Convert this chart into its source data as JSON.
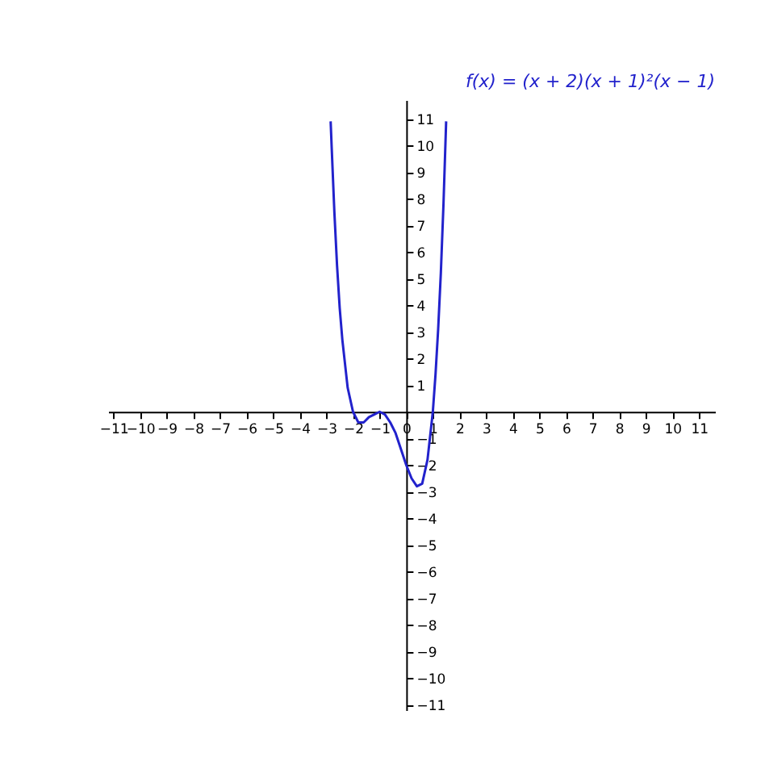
{
  "chart_data": {
    "type": "line",
    "x": [
      -2.84,
      -2.8,
      -2.7,
      -2.6,
      -2.5,
      -2.4,
      -2.2,
      -2.0,
      -1.8,
      -1.6,
      -1.4,
      -1.2,
      -1.0,
      -0.8,
      -0.6,
      -0.4,
      -0.2,
      0,
      0.2,
      0.4,
      0.6,
      0.8,
      1.0,
      1.1,
      1.2,
      1.3,
      1.4,
      1.5
    ],
    "series": [
      {
        "name": "f(x) = (x + 2)(x + 1)²(x − 1)",
        "color": "#2222cc",
        "values": [
          10.9,
          9.9,
          7.5,
          5.5,
          3.9,
          2.7,
          0.9,
          0,
          -0.4,
          -0.4,
          -0.2,
          -0.1,
          0,
          -0.1,
          -0.4,
          -0.8,
          -1.4,
          -2,
          -2.5,
          -2.8,
          -2.7,
          -1.8,
          0,
          1.4,
          3.1,
          5.2,
          7.8,
          10.9
        ]
      }
    ],
    "xlim": [
      -11.2,
      11.6
    ],
    "ylim": [
      -11.2,
      11.7
    ],
    "xticks": [
      -11,
      -10,
      -9,
      -8,
      -7,
      -6,
      -5,
      -4,
      -3,
      -2,
      -1,
      0,
      1,
      2,
      3,
      4,
      5,
      6,
      7,
      8,
      9,
      10,
      11
    ],
    "yticks": [
      -11,
      -10,
      -9,
      -8,
      -7,
      -6,
      -5,
      -4,
      -3,
      -2,
      -1,
      1,
      2,
      3,
      4,
      5,
      6,
      7,
      8,
      9,
      10,
      11
    ],
    "grid": false,
    "marker": "none",
    "line_style": "solid"
  }
}
